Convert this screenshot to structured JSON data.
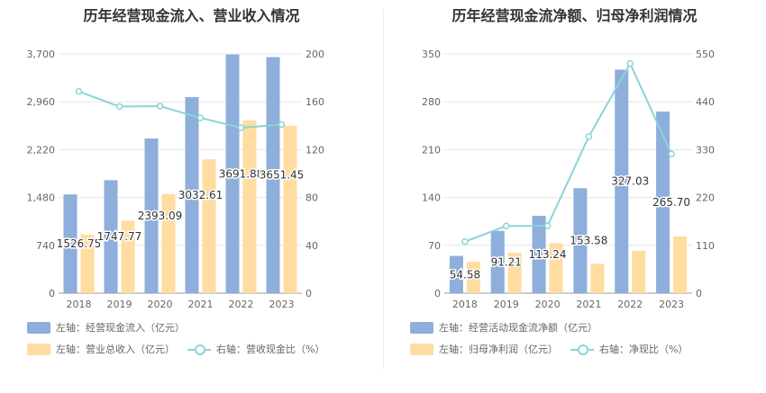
{
  "colors": {
    "bar_primary": "#8eaedb",
    "bar_secondary": "#ffdca0",
    "line": "#8ad4d8",
    "grid": "#e6e6e6",
    "axis_text": "#666666"
  },
  "chart_data": [
    {
      "type": "bar",
      "title": "历年经营现金流入、营业收入情况",
      "categories": [
        "2018",
        "2019",
        "2020",
        "2021",
        "2022",
        "2023"
      ],
      "y_left": {
        "ticks": [
          "0",
          "740",
          "1,480",
          "2,220",
          "2,960",
          "3,700"
        ],
        "ylim": [
          0,
          3700
        ]
      },
      "y_right": {
        "ticks": [
          "0",
          "40",
          "80",
          "120",
          "160",
          "200"
        ],
        "ylim": [
          0,
          200
        ]
      },
      "series": [
        {
          "name": "左轴：经营现金流入（亿元）",
          "axis": "left",
          "kind": "bar",
          "values": [
            1526.75,
            1747.77,
            2393.09,
            3032.61,
            3691.88,
            3651.45
          ],
          "labels": [
            "1526.75",
            "1747.77",
            "2393.09",
            "3032.61",
            "3691.88",
            "3651.45"
          ]
        },
        {
          "name": "左轴：营业总收入（亿元）",
          "axis": "left",
          "kind": "bar",
          "values": [
            905,
            1120,
            1530,
            2070,
            2670,
            2590
          ]
        },
        {
          "name": "右轴：营收现金比（%）",
          "axis": "right",
          "kind": "line",
          "values": [
            168.7,
            156.0,
            156.4,
            146.5,
            138.3,
            141.0
          ]
        }
      ]
    },
    {
      "type": "bar",
      "title": "历年经营现金流净额、归母净利润情况",
      "categories": [
        "2018",
        "2019",
        "2020",
        "2021",
        "2022",
        "2023"
      ],
      "y_left": {
        "ticks": [
          "0",
          "70",
          "140",
          "210",
          "280",
          "350"
        ],
        "ylim": [
          0,
          350
        ]
      },
      "y_right": {
        "ticks": [
          "0",
          "110",
          "220",
          "330",
          "440",
          "550"
        ],
        "ylim": [
          0,
          550
        ]
      },
      "series": [
        {
          "name": "左轴：经营活动现金流净额（亿元）",
          "axis": "left",
          "kind": "bar",
          "values": [
            54.58,
            91.21,
            113.24,
            153.58,
            327.03,
            265.7
          ],
          "labels": [
            "54.58",
            "91.21",
            "113.24",
            "153.58",
            "327.03",
            "265.70"
          ]
        },
        {
          "name": "左轴：归母净利润（亿元）",
          "axis": "left",
          "kind": "bar",
          "values": [
            46,
            59,
            73,
            43,
            62,
            83
          ]
        },
        {
          "name": "右轴：净现比（%）",
          "axis": "right",
          "kind": "line",
          "values": [
            118.6,
            154.5,
            154.8,
            360.0,
            528.0,
            320.0
          ]
        }
      ]
    }
  ]
}
